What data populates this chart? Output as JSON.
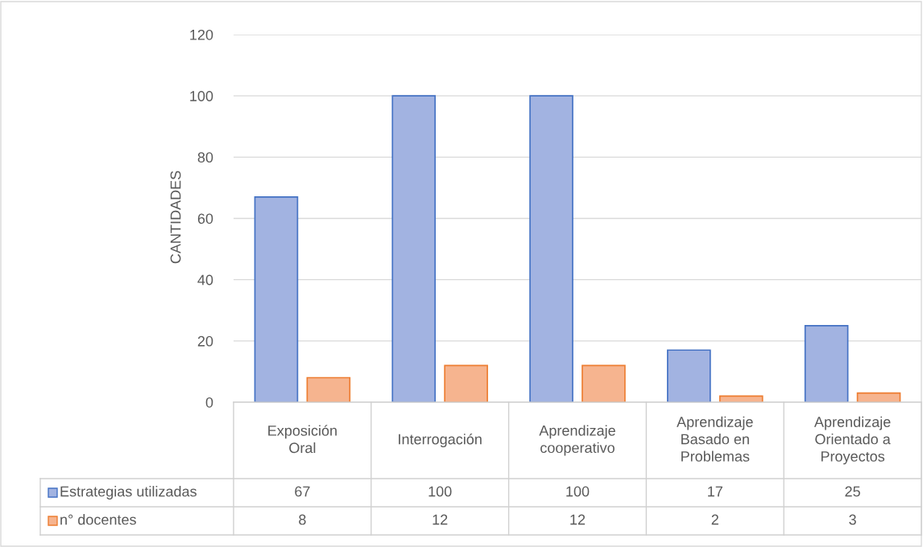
{
  "chart_data": {
    "type": "bar",
    "ylabel": "CANTIDADES",
    "categories": [
      "Exposición Oral",
      "Interrogación",
      "Aprendizaje cooperativo",
      "Aprendizaje Basado en Problemas",
      "Aprendizaje Orientado a Proyectos"
    ],
    "series": [
      {
        "name": "Estrategias utilizadas",
        "color": "#a2b3e1",
        "values": [
          67,
          100,
          100,
          17,
          25
        ]
      },
      {
        "name": "n° docentes",
        "color": "#f6b48f",
        "values": [
          8,
          12,
          12,
          2,
          3
        ]
      }
    ],
    "ylim": [
      0,
      120
    ],
    "yticks": [
      0,
      20,
      40,
      60,
      80,
      100,
      120
    ],
    "grid": "y",
    "legend": "bottom",
    "data_labels": true
  }
}
